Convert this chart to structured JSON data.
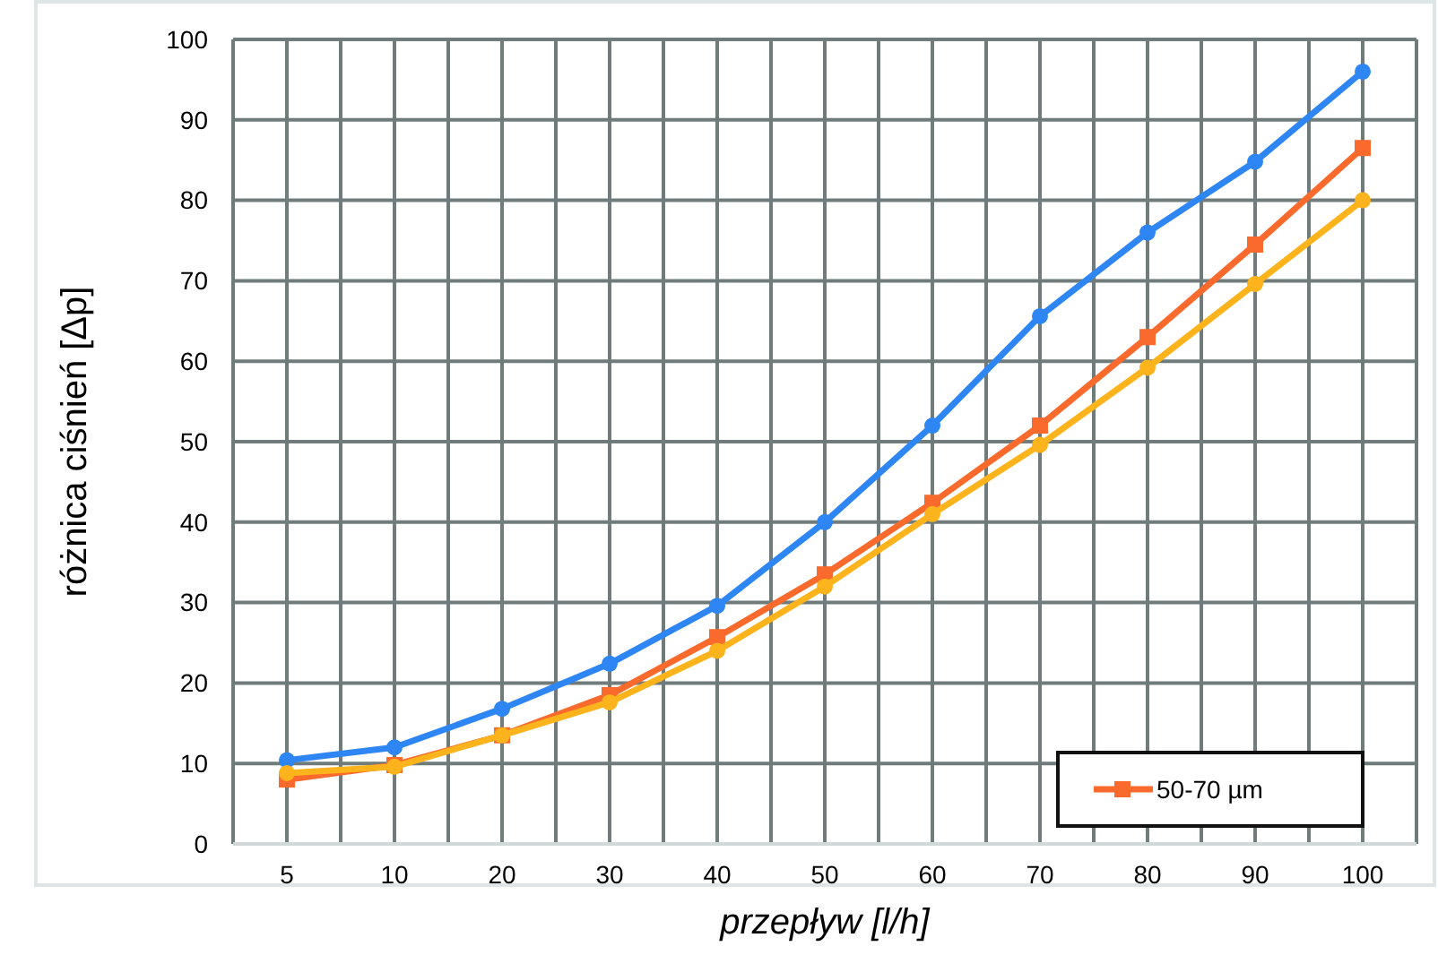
{
  "chart_data": {
    "type": "line",
    "xlabel": "przepływ [l/h]",
    "ylabel": "różnica ciśnień [Δp]",
    "categories": [
      "5",
      "10",
      "20",
      "30",
      "40",
      "50",
      "60",
      "70",
      "80",
      "90",
      "100"
    ],
    "ylim": [
      0,
      100
    ],
    "yticks": [
      0,
      10,
      20,
      30,
      40,
      50,
      60,
      70,
      80,
      90,
      100
    ],
    "grid": true,
    "legend": "bottom right",
    "series": [
      {
        "name": "50-70 µm",
        "color": "#f96a2c",
        "marker": "square",
        "values": [
          8,
          9.8,
          13.5,
          18.5,
          25.7,
          33.5,
          42.4,
          52,
          63,
          74.5,
          86.5
        ]
      },
      {
        "color": "#2e86f5",
        "marker": "circle",
        "values": [
          10.4,
          12,
          16.8,
          22.4,
          29.6,
          40,
          52,
          65.6,
          76,
          84.8,
          96
        ]
      },
      {
        "color": "#fdb31b",
        "marker": "circle",
        "values": [
          8.8,
          9.6,
          13.5,
          17.6,
          24,
          32,
          41,
          49.6,
          59.2,
          69.6,
          80
        ]
      }
    ]
  }
}
